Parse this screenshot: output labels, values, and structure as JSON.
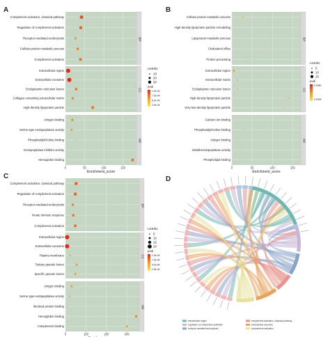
{
  "chart_data": [
    {
      "panel": "A",
      "type": "scatter",
      "xlabel": "Enrichment_score",
      "xticks": [
        0,
        50,
        100,
        150
      ],
      "xlim": [
        0,
        185
      ],
      "facets": [
        {
          "name": "BP",
          "rows": [
            {
              "term": "Complement activation, classical pathway",
              "x": 42,
              "p": 5e-06
            },
            {
              "term": "Regulation of complement activation",
              "x": 40,
              "p": 1e-05
            },
            {
              "term": "Receptor-mediated endocytosis",
              "x": 26,
              "p": 8e-05
            },
            {
              "term": "Cellular protein metabolic process",
              "x": 32,
              "p": 4e-05
            },
            {
              "term": "Complement activation",
              "x": 39,
              "p": 2e-05
            }
          ]
        },
        {
          "name": "CC",
          "rows": [
            {
              "term": "Extracellular region",
              "x": 7,
              "p": 1e-06
            },
            {
              "term": "Extracellular exosome",
              "x": 10,
              "p": 1e-06
            },
            {
              "term": "Endoplasmic reticulum lumen",
              "x": 28,
              "p": 3e-05
            },
            {
              "term": "Collagen-containing extracellular matrix",
              "x": 19,
              "p": 5e-05
            },
            {
              "term": "High-density lipoprotein particle",
              "x": 71,
              "p": 2e-05
            }
          ]
        },
        {
          "name": "MF",
          "rows": [
            {
              "term": "Antigen binding",
              "x": 18,
              "p": 6e-05
            },
            {
              "term": "Serine-type endopeptidase activity",
              "x": 16,
              "p": 0.0001
            },
            {
              "term": "Phosphatidylcholine binding",
              "x": 28,
              "p": 0.0007
            },
            {
              "term": "Endopeptidase inhibitor activity",
              "x": 17,
              "p": 0.0011
            },
            {
              "term": "Hemoglobin binding",
              "x": 175,
              "p": 2e-05
            }
          ]
        }
      ],
      "size_legend": {
        "title": "ListHits",
        "labels": [
          "10",
          "20",
          "30"
        ]
      },
      "color_legend": {
        "title": "pval",
        "labels": [
          "1.0e-03",
          "7.5e-04",
          "5.0e-04",
          "2.5e-04"
        ]
      }
    },
    {
      "panel": "B",
      "type": "scatter",
      "xlabel": "Enrichment_score",
      "xticks": [
        0,
        50,
        100,
        150
      ],
      "xlim": [
        0,
        170
      ],
      "facets": [
        {
          "name": "BP",
          "rows": [
            {
              "term": "Cellular protein metabolic process",
              "x": 27,
              "p": 0.0004
            },
            {
              "term": "High-density lipoprotein particle remodeling",
              "x": 165,
              "p": 0.0015
            },
            {
              "term": "Lipoprotein metabolic process",
              "x": 93,
              "p": 0.002
            },
            {
              "term": "Cholesterol efflux",
              "x": 92,
              "p": 0.002
            },
            {
              "term": "Protein processing",
              "x": 41,
              "p": 0.0025
            }
          ]
        },
        {
          "name": "CC",
          "rows": [
            {
              "term": "Extracellular region",
              "x": 5,
              "p": 0.0001
            },
            {
              "term": "Extracellular matrix",
              "x": 14,
              "p": 0.0004
            },
            {
              "term": "Endoplasmic reticulum lumen",
              "x": 14,
              "p": 0.0006
            },
            {
              "term": "High-density lipoprotein particle",
              "x": 140,
              "p": 0.0005
            },
            {
              "term": "Very-low-density lipoprotein particle",
              "x": 127,
              "p": 0.0008
            }
          ]
        },
        {
          "name": "MF",
          "rows": [
            {
              "term": "Calcium ion binding",
              "x": 5,
              "p": 0.006
            },
            {
              "term": "Phosphatidylcholine binding",
              "x": 30,
              "p": 0.0022
            },
            {
              "term": "Antigen binding",
              "x": 14,
              "p": 0.0028
            },
            {
              "term": "Metalloendopeptidase activity",
              "x": 20,
              "p": 0.003
            },
            {
              "term": "Phospholipid binding",
              "x": 20,
              "p": 0.0035
            }
          ]
        }
      ],
      "size_legend": {
        "title": "ListHits",
        "labels": [
          "5",
          "10",
          "15"
        ]
      },
      "color_legend": {
        "title": "pval",
        "labels": [
          "0.0050",
          "0.0025"
        ]
      }
    },
    {
      "panel": "C",
      "type": "scatter",
      "xlabel": "Enrichment_score",
      "xticks": [
        0,
        100,
        200,
        300
      ],
      "xlim": [
        0,
        360
      ],
      "facets": [
        {
          "name": "BP",
          "rows": [
            {
              "term": "Complement activation, classical pathway",
              "x": 52,
              "p": 1e-05
            },
            {
              "term": "Regulation of complement activation",
              "x": 48,
              "p": 1e-05
            },
            {
              "term": "Receptor-mediated endocytosis",
              "x": 36,
              "p": 4e-05
            },
            {
              "term": "Innate immune response",
              "x": 38,
              "p": 3e-05
            },
            {
              "term": "Complement activation",
              "x": 48,
              "p": 2e-05
            }
          ]
        },
        {
          "name": "CC",
          "rows": [
            {
              "term": "Extracellular region",
              "x": 8,
              "p": 1e-06
            },
            {
              "term": "Extracellular exosome",
              "x": 8,
              "p": 1e-06
            },
            {
              "term": "Plasma membrane",
              "x": 22,
              "p": 0.0003
            },
            {
              "term": "Tertiary granule lumen",
              "x": 55,
              "p": 0.0001
            },
            {
              "term": "Specific granule lumen",
              "x": 48,
              "p": 0.0001
            }
          ]
        },
        {
          "name": "MF",
          "rows": [
            {
              "term": "Antigen binding",
              "x": 30,
              "p": 0.0001
            },
            {
              "term": "Serine-type endopeptidase activity",
              "x": 20,
              "p": 0.0003
            },
            {
              "term": "Identical protein binding",
              "x": 7,
              "p": 0.0007
            },
            {
              "term": "Hemoglobin binding",
              "x": 345,
              "p": 5e-05
            },
            {
              "term": "Complement binding",
              "x": 300,
              "p": 0.0001
            }
          ]
        }
      ],
      "size_legend": {
        "title": "ListHits",
        "labels": [
          "5",
          "10",
          "15",
          "20"
        ]
      },
      "color_legend": {
        "title": "pval",
        "labels": [
          "1.0e-03",
          "7.5e-04",
          "5.0e-04",
          "2.5e-04"
        ]
      }
    },
    {
      "panel": "D",
      "type": "chord",
      "legend": [
        {
          "label": "extracellular region",
          "color": "#6fb8b0"
        },
        {
          "label": "regulation of complement activation",
          "color": "#c7b6d6"
        },
        {
          "label": "receptor-mediated endocytosis",
          "color": "#8aa4c8"
        },
        {
          "label": "complement activation, classical pathway",
          "color": "#e8938c"
        },
        {
          "label": "extracellular exosome",
          "color": "#e8a35a"
        },
        {
          "label": "complement activation",
          "color": "#e6e29a"
        }
      ]
    }
  ],
  "panel_labels": {
    "a": "A",
    "b": "B",
    "c": "C",
    "d": "D"
  },
  "facet_names": {
    "bp": "BP",
    "cc": "CC",
    "mf": "MF"
  }
}
